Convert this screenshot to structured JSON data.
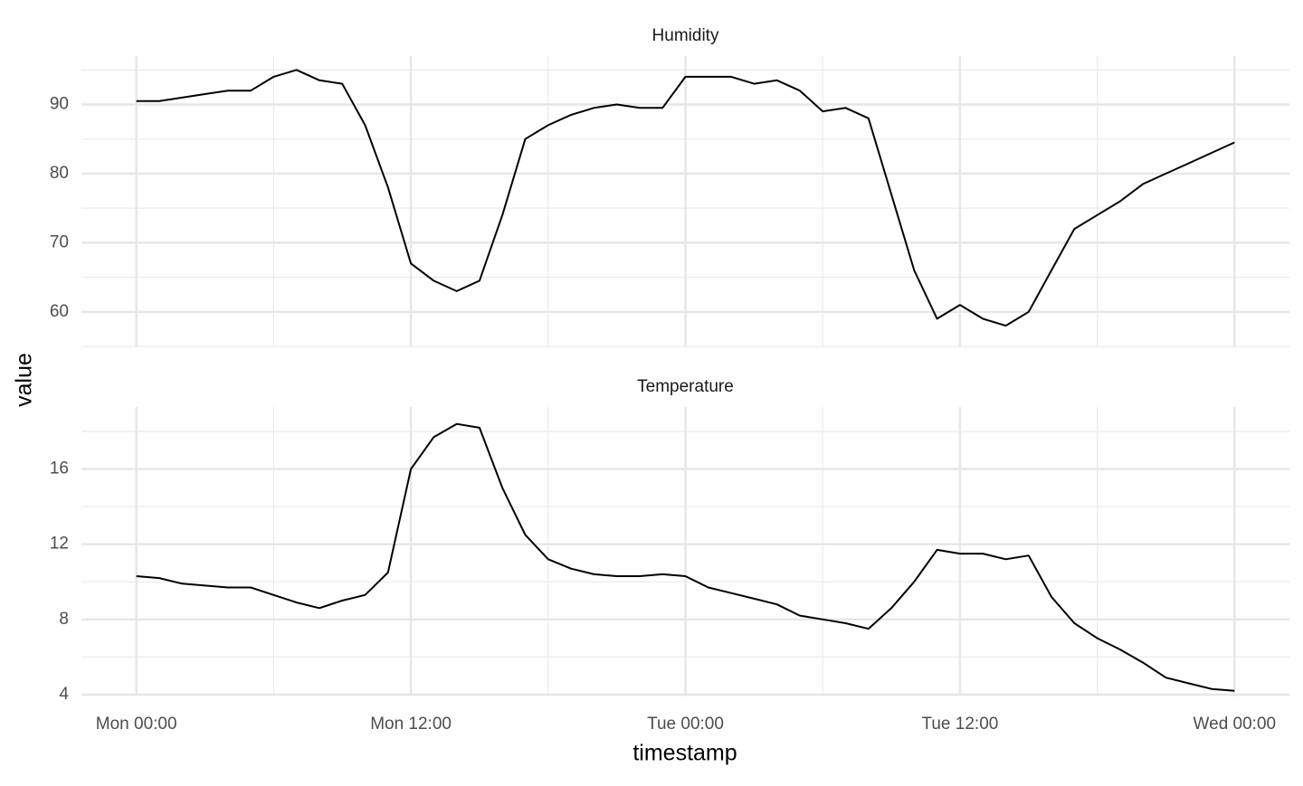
{
  "shared_x": {
    "label": "timestamp",
    "x": [
      0,
      1,
      2,
      3,
      4,
      5,
      6,
      7,
      8,
      9,
      10,
      11,
      12,
      13,
      14,
      15,
      16,
      17,
      18,
      19,
      20,
      21,
      22,
      23,
      24,
      25,
      26,
      27,
      28,
      29,
      30,
      31,
      32,
      33,
      34,
      35,
      36,
      37,
      38,
      39,
      40,
      41,
      42,
      43,
      44,
      45,
      46,
      47,
      48
    ],
    "xlim": [
      -2.4,
      50.4
    ],
    "xticks": [
      {
        "value": 0,
        "label": "Mon 00:00"
      },
      {
        "value": 12,
        "label": "Mon 12:00"
      },
      {
        "value": 24,
        "label": "Tue 00:00"
      },
      {
        "value": 36,
        "label": "Tue 12:00"
      },
      {
        "value": 48,
        "label": "Wed 00:00"
      }
    ],
    "x_minor_ticks": [
      6,
      18,
      30,
      42
    ]
  },
  "ylabel": "value",
  "chart_data": [
    {
      "type": "line",
      "title": "Humidity",
      "grid": true,
      "series": [
        {
          "color": "#000000",
          "values": [
            90.5,
            90.5,
            91,
            91.5,
            92,
            92,
            94,
            95,
            93.5,
            93,
            87,
            78,
            67,
            64.5,
            63,
            64.5,
            74,
            85,
            87,
            88.5,
            89.5,
            90,
            89.5,
            89.5,
            94,
            94,
            94,
            93,
            93.5,
            92,
            89,
            89.5,
            88,
            77,
            66,
            59,
            61,
            59,
            58,
            60,
            66,
            72,
            74,
            76,
            78.5,
            80,
            81.5,
            83,
            84.5
          ]
        }
      ],
      "ylim": [
        55,
        97
      ],
      "yticks": [
        60,
        70,
        80,
        90
      ],
      "y_minor_ticks": [
        55,
        65,
        75,
        85,
        95
      ]
    },
    {
      "type": "line",
      "title": "Temperature",
      "grid": true,
      "series": [
        {
          "color": "#000000",
          "values": [
            10.3,
            10.2,
            9.9,
            9.8,
            9.7,
            9.7,
            9.3,
            8.9,
            8.6,
            9.0,
            9.3,
            10.5,
            16,
            17.7,
            18.4,
            18.2,
            15,
            12.5,
            11.2,
            10.7,
            10.4,
            10.3,
            10.3,
            10.4,
            10.3,
            9.7,
            9.4,
            9.1,
            8.8,
            8.2,
            8.0,
            7.8,
            7.5,
            8.6,
            10.0,
            11.7,
            11.5,
            11.5,
            11.2,
            11.4,
            9.2,
            7.8,
            7.0,
            6.4,
            5.7,
            4.9,
            4.6,
            4.3,
            4.2
          ]
        }
      ],
      "ylim": [
        3.9,
        19.3
      ],
      "yticks": [
        4,
        8,
        12,
        16
      ],
      "y_minor_ticks": [
        6,
        10,
        14,
        18
      ]
    }
  ]
}
